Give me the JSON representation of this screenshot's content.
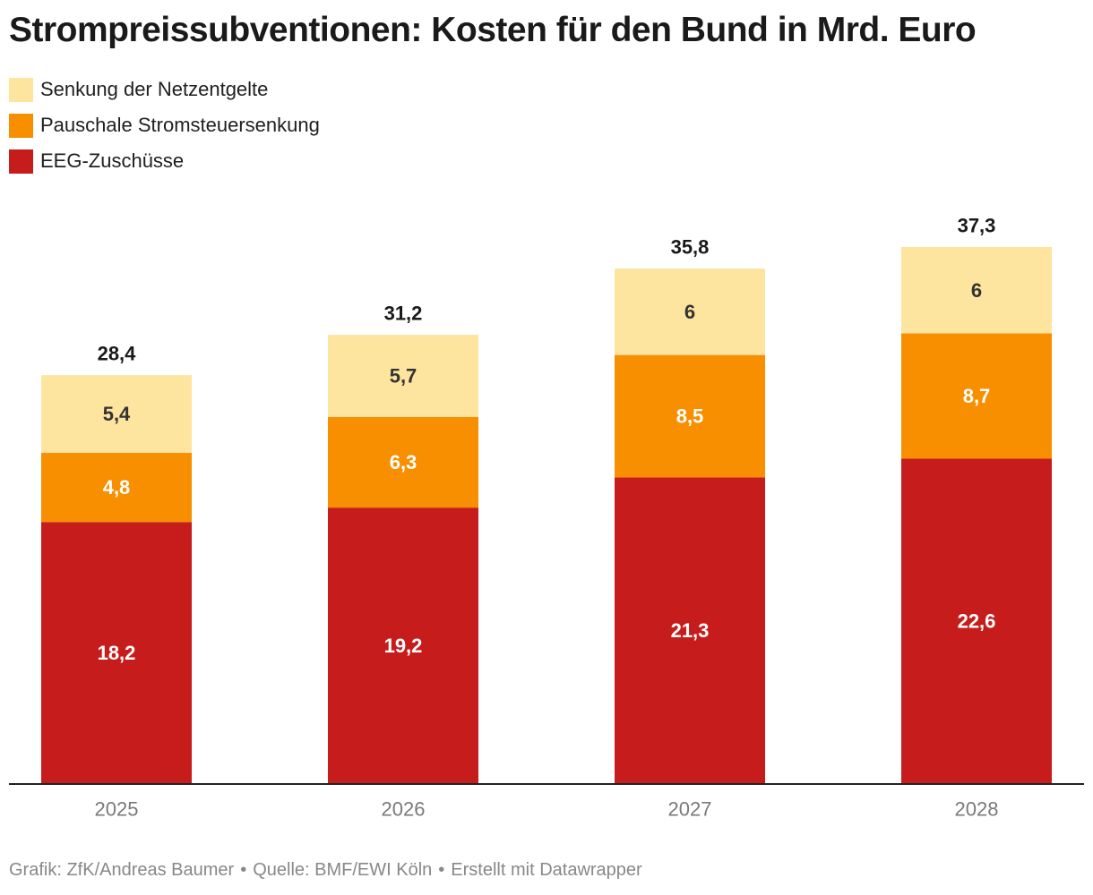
{
  "title": "Strompreissubventionen: Kosten für den Bund in Mrd. Euro",
  "chart_data": {
    "type": "bar",
    "stacked": true,
    "title": "Strompreissubventionen: Kosten für den Bund in Mrd. Euro",
    "categories": [
      "2025",
      "2026",
      "2027",
      "2028"
    ],
    "series": [
      {
        "name": "EEG-Zuschüsse",
        "color": "#c71c1c",
        "label_color": "#ffffff",
        "values": [
          18.2,
          19.2,
          21.3,
          22.6
        ],
        "labels": [
          "18,2",
          "19,2",
          "21,3",
          "22,6"
        ]
      },
      {
        "name": "Pauschale Stromsteuersenkung",
        "color": "#f78f00",
        "label_color": "#ffffff",
        "values": [
          4.8,
          6.3,
          8.5,
          8.7
        ],
        "labels": [
          "4,8",
          "6,3",
          "8,5",
          "8,7"
        ]
      },
      {
        "name": "Senkung der Netzentgelte",
        "color": "#fde49f",
        "label_color": "#333333",
        "values": [
          5.4,
          5.7,
          6,
          6
        ],
        "labels": [
          "5,4",
          "5,7",
          "6",
          "6"
        ]
      }
    ],
    "totals": [
      28.4,
      31.2,
      35.8,
      37.3
    ],
    "total_labels": [
      "28,4",
      "31,2",
      "35,8",
      "37,3"
    ],
    "ylim": [
      0,
      37.3
    ],
    "legend_position": "top-left",
    "xlabel": "",
    "ylabel": ""
  },
  "legend": [
    {
      "label": "Senkung der Netzentgelte",
      "color": "#fde49f"
    },
    {
      "label": "Pauschale Stromsteuersenkung",
      "color": "#f78f00"
    },
    {
      "label": "EEG-Zuschüsse",
      "color": "#c71c1c"
    }
  ],
  "footer": {
    "credit": "Grafik: ZfK/Andreas Baumer",
    "source": "Quelle: BMF/EWI Köln",
    "tool": "Erstellt mit Datawrapper",
    "separator": "•"
  }
}
